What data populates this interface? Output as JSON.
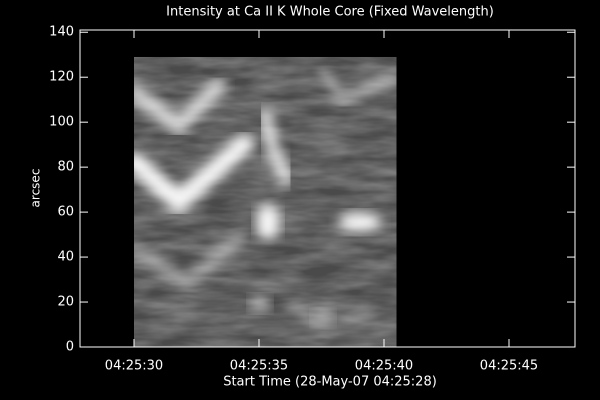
{
  "chart_data": {
    "type": "image",
    "title": "Intensity at Ca II K Whole Core (Fixed Wavelength)",
    "x_label": "Start Time (28-May-07 04:25:28)",
    "y_label": "arcsec",
    "xlim": [
      -0.16,
      19.64
    ],
    "xticks": [
      {
        "value": 2,
        "label": "04:25:30"
      },
      {
        "value": 7,
        "label": "04:25:35"
      },
      {
        "value": 12,
        "label": "04:25:40"
      },
      {
        "value": 17,
        "label": "04:25:45"
      }
    ],
    "ylim": [
      0,
      141
    ],
    "yticks": [
      0,
      20,
      40,
      60,
      80,
      100,
      120,
      140
    ],
    "image_x": [
      2.0,
      12.5
    ],
    "image_y": [
      0,
      129
    ]
  }
}
